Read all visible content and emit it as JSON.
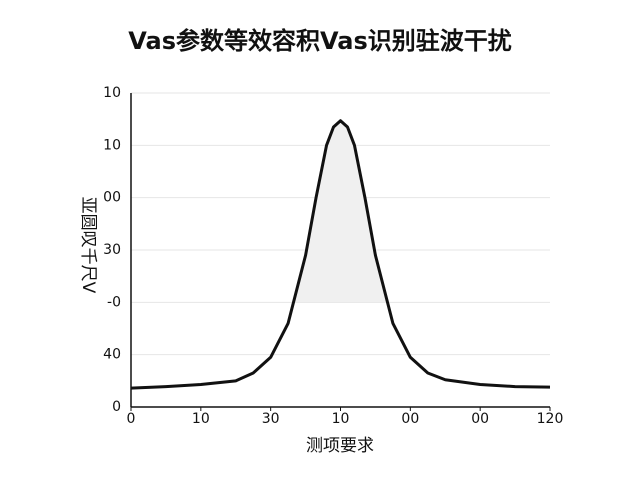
{
  "chart_data": {
    "type": "line",
    "title": "Vas参数等效容积Vas识别驻波干扰",
    "x_label": "测项要求",
    "y_label": "亚圆叹千尺V",
    "x": [
      0,
      10,
      20,
      30,
      35,
      40,
      45,
      50,
      53,
      56,
      58,
      60,
      62,
      64,
      67,
      70,
      75,
      80,
      85,
      90,
      100,
      110,
      120
    ],
    "series": [
      {
        "color": "#111111",
        "values": [
          0.36,
          0.39,
          0.43,
          0.5,
          0.65,
          0.95,
          1.6,
          2.9,
          4.0,
          5.0,
          5.35,
          5.47,
          5.35,
          5.0,
          4.0,
          2.9,
          1.6,
          0.95,
          0.65,
          0.52,
          0.43,
          0.39,
          0.38
        ]
      }
    ],
    "xlim": [
      0,
      120
    ],
    "xticks": [
      {
        "value": 0,
        "label": "0"
      },
      {
        "value": 20,
        "label": "10"
      },
      {
        "value": 40,
        "label": "30"
      },
      {
        "value": 60,
        "label": "10"
      },
      {
        "value": 80,
        "label": "00"
      },
      {
        "value": 100,
        "label": "00"
      },
      120
    ],
    "ylim": [
      0,
      6
    ],
    "yticks": [
      {
        "value": 0,
        "label": "0"
      },
      {
        "value": 1,
        "label": "40"
      },
      {
        "value": 2,
        "label": "-0"
      },
      {
        "value": 3,
        "label": "30"
      },
      {
        "value": 4,
        "label": "00"
      },
      {
        "value": 5,
        "label": "10"
      },
      {
        "value": 6,
        "label": "10"
      }
    ],
    "grid": true
  }
}
